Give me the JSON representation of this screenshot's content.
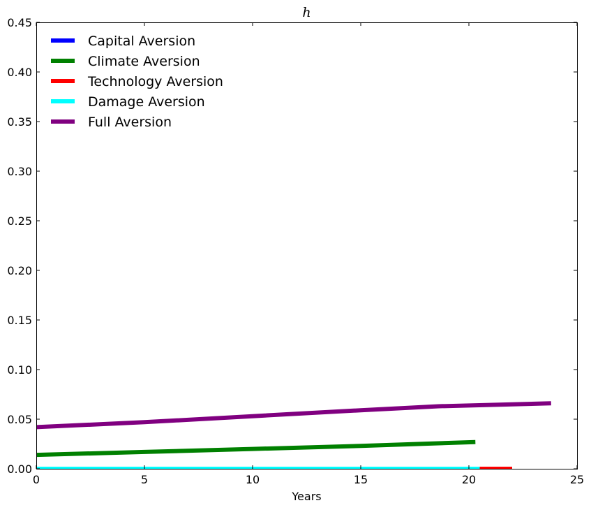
{
  "chart_data": {
    "type": "line",
    "title": "h",
    "xlabel": "Years",
    "ylabel": "",
    "xlim": [
      0,
      25
    ],
    "ylim": [
      0,
      0.45
    ],
    "xticks": [
      0,
      5,
      10,
      15,
      20,
      25
    ],
    "xtick_labels": [
      "0",
      "5",
      "10",
      "15",
      "20",
      "25"
    ],
    "yticks": [
      0,
      0.05,
      0.1,
      0.15,
      0.2,
      0.25,
      0.3,
      0.35,
      0.4,
      0.45
    ],
    "ytick_labels": [
      "0.00",
      "0.05",
      "0.10",
      "0.15",
      "0.20",
      "0.25",
      "0.30",
      "0.35",
      "0.40",
      "0.45"
    ],
    "grid": false,
    "legend_position": "top-left",
    "series": [
      {
        "name": "Capital Aversion",
        "color": "#0000ff",
        "x": [
          0,
          20.3
        ],
        "y": [
          0.0,
          0.0
        ]
      },
      {
        "name": "Climate Aversion",
        "color": "#008000",
        "x": [
          0,
          5,
          10,
          15,
          20.3
        ],
        "y": [
          0.014,
          0.017,
          0.02,
          0.023,
          0.027
        ]
      },
      {
        "name": "Technology Aversion",
        "color": "#ff0000",
        "x": [
          20.5,
          22.0
        ],
        "y": [
          0.0,
          0.0
        ]
      },
      {
        "name": "Damage Aversion",
        "color": "#00ffff",
        "x": [
          0,
          20.5
        ],
        "y": [
          0.0,
          0.0
        ]
      },
      {
        "name": "Full Aversion",
        "color": "#800080",
        "x": [
          0,
          5,
          10,
          15,
          18.6,
          23.8
        ],
        "y": [
          0.042,
          0.047,
          0.053,
          0.059,
          0.063,
          0.066
        ]
      }
    ]
  }
}
